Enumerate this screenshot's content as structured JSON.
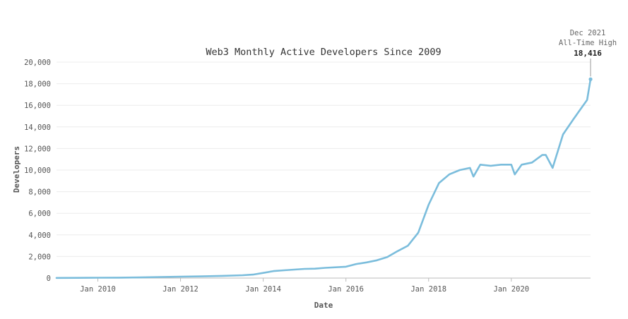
{
  "chart_data": {
    "type": "line",
    "title": "Web3 Monthly Active Developers Since 2009",
    "xlabel": "Date",
    "ylabel": "Developers",
    "ylim": [
      0,
      20000
    ],
    "xlim": [
      "2009-01",
      "2021-12"
    ],
    "y_ticks": [
      0,
      2000,
      4000,
      6000,
      8000,
      10000,
      12000,
      14000,
      16000,
      18000,
      20000
    ],
    "y_tick_labels": [
      "0",
      "2,000",
      "4,000",
      "6,000",
      "8,000",
      "10,000",
      "12,000",
      "14,000",
      "16,000",
      "18,000",
      "20,000"
    ],
    "x_ticks": [
      "2010-01",
      "2012-01",
      "2014-01",
      "2016-01",
      "2018-01",
      "2020-01"
    ],
    "x_tick_labels": [
      "Jan 2010",
      "Jan 2012",
      "Jan 2014",
      "Jan 2016",
      "Jan 2018",
      "Jan 2020"
    ],
    "grid": true,
    "color": "#7bbddc",
    "series": [
      {
        "x": [
          "2009-01",
          "2009-07",
          "2010-01",
          "2010-07",
          "2011-01",
          "2011-07",
          "2012-01",
          "2012-07",
          "2013-01",
          "2013-07",
          "2013-10",
          "2014-01",
          "2014-04",
          "2014-07",
          "2015-01",
          "2015-04",
          "2015-07",
          "2016-01",
          "2016-04",
          "2016-07",
          "2016-10",
          "2017-01",
          "2017-04",
          "2017-07",
          "2017-10",
          "2018-01",
          "2018-04",
          "2018-07",
          "2018-10",
          "2019-01",
          "2019-02",
          "2019-04",
          "2019-07",
          "2019-10",
          "2020-01",
          "2020-02",
          "2020-04",
          "2020-07",
          "2020-10",
          "2020-11",
          "2021-01",
          "2021-04",
          "2021-07",
          "2021-09",
          "2021-11",
          "2021-12"
        ],
        "y": [
          10,
          20,
          30,
          40,
          60,
          100,
          130,
          160,
          200,
          260,
          320,
          480,
          650,
          720,
          850,
          870,
          950,
          1050,
          1300,
          1450,
          1650,
          1950,
          2500,
          3000,
          4200,
          6800,
          8800,
          9600,
          10000,
          10200,
          9400,
          10500,
          10400,
          10500,
          10500,
          9600,
          10500,
          10700,
          11400,
          11400,
          10200,
          13300,
          14700,
          15600,
          16500,
          18416
        ]
      }
    ],
    "annotation": {
      "date_label": "Dec 2021",
      "text": "All-Time High",
      "value_label": "18,416",
      "x": "2021-12",
      "y": 18416
    }
  }
}
